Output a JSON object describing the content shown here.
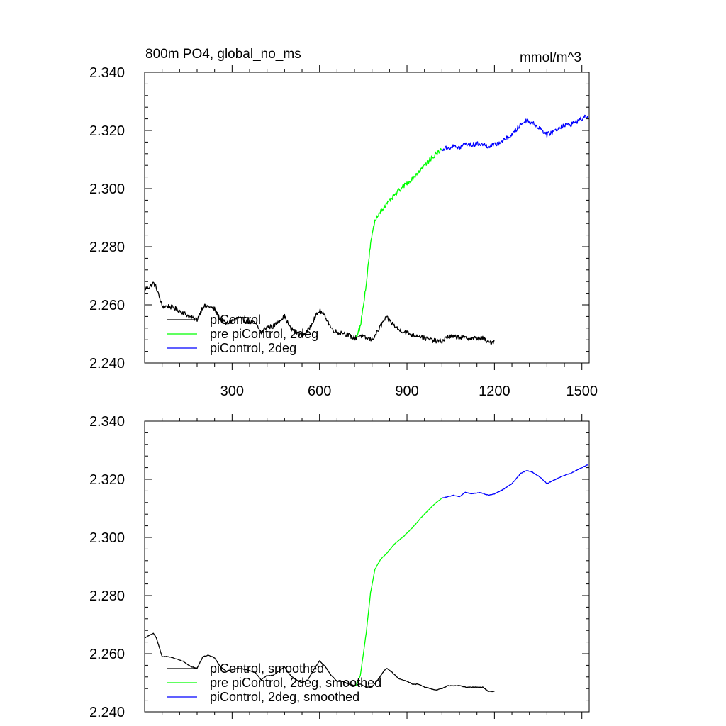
{
  "figure": {
    "title": "800m PO4, global_no_ms",
    "units": "mmol/m^3"
  },
  "chart_data": [
    {
      "type": "line",
      "panel": "top",
      "xlim": [
        0,
        1525
      ],
      "ylim": [
        2.24,
        2.34
      ],
      "x_ticks": [
        300,
        600,
        900,
        1200,
        1500
      ],
      "x_tick_labels": [
        "300",
        "600",
        "900",
        "1200",
        "1500"
      ],
      "y_ticks": [
        2.24,
        2.26,
        2.28,
        2.3,
        2.32,
        2.34
      ],
      "y_tick_labels": [
        "2.240",
        "2.260",
        "2.280",
        "2.300",
        "2.320",
        "2.340"
      ],
      "legend_position": "bottom-left",
      "noise": 0.0008,
      "series": [
        {
          "name": "piControl",
          "color": "#000000",
          "x": [
            1,
            20,
            30,
            40,
            60,
            80,
            100,
            130,
            160,
            180,
            200,
            220,
            240,
            260,
            280,
            300,
            320,
            350,
            380,
            400,
            420,
            440,
            460,
            480,
            500,
            520,
            540,
            560,
            580,
            600,
            620,
            640,
            660,
            680,
            700,
            720,
            740,
            760,
            780,
            800,
            820,
            830,
            850,
            870,
            900,
            920,
            940,
            960,
            980,
            1000,
            1020,
            1040,
            1060,
            1080,
            1100,
            1120,
            1140,
            1160,
            1180,
            1200
          ],
          "y": [
            2.2655,
            2.2665,
            2.2675,
            2.266,
            2.2595,
            2.2595,
            2.259,
            2.2575,
            2.2555,
            2.255,
            2.2595,
            2.2595,
            2.2585,
            2.255,
            2.2535,
            2.2545,
            2.2555,
            2.2545,
            2.2535,
            2.2505,
            2.2525,
            2.2525,
            2.2545,
            2.256,
            2.252,
            2.2505,
            2.2495,
            2.251,
            2.255,
            2.258,
            2.256,
            2.252,
            2.2505,
            2.2505,
            2.2495,
            2.2485,
            2.2495,
            2.2485,
            2.248,
            2.251,
            2.2545,
            2.2555,
            2.2535,
            2.2515,
            2.2505,
            2.2495,
            2.2495,
            2.2485,
            2.248,
            2.2475,
            2.2475,
            2.249,
            2.249,
            2.249,
            2.2485,
            2.2485,
            2.2485,
            2.2485,
            2.247,
            2.2475
          ]
        },
        {
          "name": "pre piControl, 2deg",
          "color": "#00ff00",
          "x": [
            725,
            740,
            760,
            775,
            790,
            810,
            830,
            860,
            890,
            920,
            950,
            980,
            1000,
            1020
          ],
          "y": [
            2.249,
            2.2525,
            2.267,
            2.281,
            2.289,
            2.2925,
            2.2945,
            2.298,
            2.301,
            2.3035,
            2.307,
            2.31,
            2.312,
            2.3135
          ]
        },
        {
          "name": "piControl, 2deg",
          "color": "#0000ff",
          "x": [
            1020,
            1040,
            1060,
            1080,
            1100,
            1120,
            1150,
            1180,
            1200,
            1230,
            1260,
            1290,
            1310,
            1330,
            1360,
            1380,
            1400,
            1430,
            1460,
            1490,
            1520
          ],
          "y": [
            2.3135,
            2.314,
            2.3145,
            2.314,
            2.3155,
            2.315,
            2.3155,
            2.3145,
            2.315,
            2.3165,
            2.3185,
            2.322,
            2.3235,
            2.3225,
            2.3205,
            2.3185,
            2.3195,
            2.3215,
            2.322,
            2.3235,
            2.325
          ]
        }
      ]
    },
    {
      "type": "line",
      "panel": "bottom",
      "xlim": [
        0,
        1525
      ],
      "ylim": [
        2.24,
        2.34
      ],
      "x_ticks": [
        300,
        600,
        900,
        1200,
        1500
      ],
      "x_tick_labels": [],
      "y_ticks": [
        2.24,
        2.26,
        2.28,
        2.3,
        2.32,
        2.34
      ],
      "y_tick_labels": [
        "2.240",
        "2.260",
        "2.280",
        "2.300",
        "2.320",
        "2.340"
      ],
      "legend_position": "bottom-left",
      "noise": 0.0001,
      "series": [
        {
          "name": "piControl, smoothed",
          "color": "#000000",
          "x": [
            1,
            20,
            30,
            40,
            60,
            80,
            100,
            130,
            160,
            180,
            200,
            220,
            240,
            260,
            280,
            300,
            320,
            350,
            380,
            400,
            420,
            440,
            460,
            480,
            500,
            520,
            540,
            560,
            580,
            600,
            620,
            640,
            660,
            680,
            700,
            720,
            740,
            760,
            780,
            800,
            820,
            830,
            850,
            870,
            900,
            920,
            940,
            960,
            980,
            1000,
            1020,
            1040,
            1060,
            1080,
            1100,
            1120,
            1140,
            1160,
            1180,
            1200
          ],
          "y": [
            2.2655,
            2.2665,
            2.267,
            2.2655,
            2.259,
            2.259,
            2.2585,
            2.2575,
            2.2555,
            2.255,
            2.259,
            2.2595,
            2.2585,
            2.2555,
            2.254,
            2.2545,
            2.255,
            2.2545,
            2.2535,
            2.251,
            2.2525,
            2.2525,
            2.254,
            2.2555,
            2.2525,
            2.251,
            2.25,
            2.251,
            2.2545,
            2.2575,
            2.2555,
            2.2525,
            2.2505,
            2.2505,
            2.2495,
            2.249,
            2.2495,
            2.2485,
            2.2485,
            2.251,
            2.254,
            2.255,
            2.2535,
            2.2515,
            2.2505,
            2.2495,
            2.2495,
            2.2485,
            2.248,
            2.2475,
            2.248,
            2.249,
            2.249,
            2.249,
            2.2485,
            2.2485,
            2.2485,
            2.2485,
            2.247,
            2.247
          ]
        },
        {
          "name": "pre piControl, 2deg, smoothed",
          "color": "#00ff00",
          "x": [
            725,
            740,
            760,
            775,
            790,
            810,
            830,
            860,
            890,
            920,
            950,
            980,
            1000,
            1020
          ],
          "y": [
            2.249,
            2.2525,
            2.267,
            2.281,
            2.289,
            2.2925,
            2.2945,
            2.298,
            2.3005,
            2.3035,
            2.307,
            2.31,
            2.312,
            2.3135
          ]
        },
        {
          "name": "piControl, 2deg, smoothed",
          "color": "#0000ff",
          "x": [
            1020,
            1040,
            1060,
            1080,
            1100,
            1120,
            1150,
            1180,
            1200,
            1230,
            1260,
            1290,
            1310,
            1330,
            1360,
            1380,
            1400,
            1430,
            1460,
            1490,
            1520
          ],
          "y": [
            2.3135,
            2.314,
            2.3145,
            2.314,
            2.3155,
            2.315,
            2.3155,
            2.3145,
            2.315,
            2.3165,
            2.3185,
            2.322,
            2.323,
            2.3225,
            2.3205,
            2.3185,
            2.3195,
            2.321,
            2.322,
            2.3235,
            2.325
          ]
        }
      ]
    }
  ]
}
